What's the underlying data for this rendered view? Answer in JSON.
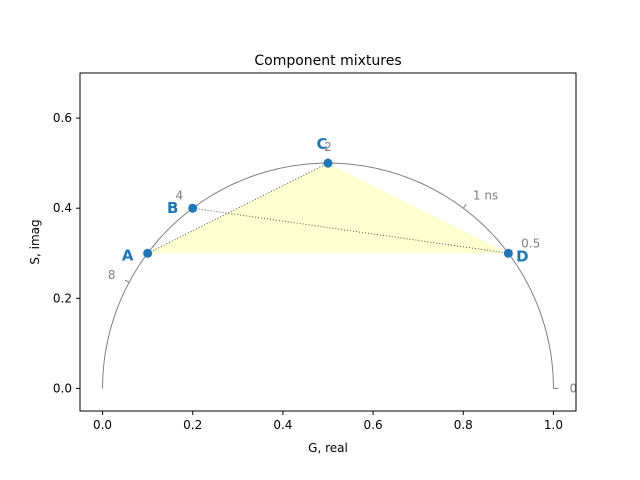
{
  "chart_data": {
    "type": "scatter",
    "title": "Component mixtures",
    "xlabel": "G, real",
    "ylabel": "S, imag",
    "xlim": [
      -0.05,
      1.05
    ],
    "ylim": [
      -0.05,
      0.7
    ],
    "xticks": [
      0.0,
      0.2,
      0.4,
      0.6,
      0.8,
      1.0
    ],
    "yticks": [
      0.0,
      0.2,
      0.4,
      0.6
    ],
    "xtick_labels": [
      "0.0",
      "0.2",
      "0.4",
      "0.6",
      "0.8",
      "1.0"
    ],
    "ytick_labels": [
      "0.0",
      "0.2",
      "0.4",
      "0.6"
    ],
    "grid": false,
    "universal_semicircle": {
      "center": [
        0.5,
        0.0
      ],
      "radius": 0.5,
      "color": "#808080",
      "lifetime_ticks": [
        {
          "label": "0",
          "g": 1.0,
          "s": 0.0
        },
        {
          "label": "0.5",
          "g": 0.9,
          "s": 0.3
        },
        {
          "label": "1 ns",
          "g": 0.8,
          "s": 0.4
        },
        {
          "label": "2",
          "g": 0.5,
          "s": 0.5
        },
        {
          "label": "4",
          "g": 0.2,
          "s": 0.4
        },
        {
          "label": "8",
          "g": 0.06,
          "s": 0.235
        }
      ]
    },
    "components": [
      {
        "label": "A",
        "g": 0.1,
        "s": 0.3
      },
      {
        "label": "B",
        "g": 0.2,
        "s": 0.4
      },
      {
        "label": "C",
        "g": 0.5,
        "s": 0.5
      },
      {
        "label": "D",
        "g": 0.9,
        "s": 0.3
      }
    ],
    "point_color": "#1f77b4",
    "mixture_lines": [
      [
        "A",
        "C"
      ],
      [
        "B",
        "D"
      ]
    ],
    "fill_polygon": [
      "A",
      "C",
      "D"
    ],
    "fill_color": "#ffffd0"
  }
}
